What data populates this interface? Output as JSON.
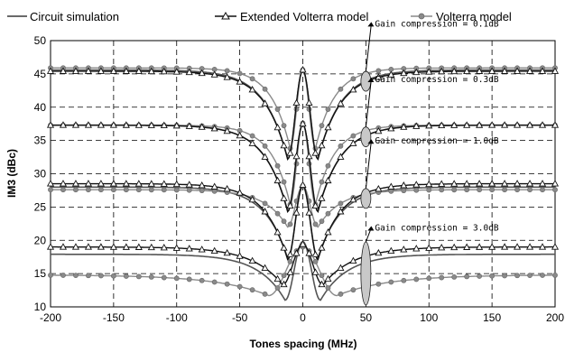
{
  "chart_data": {
    "type": "line",
    "xlabel": "Tones spacing (MHz)",
    "ylabel": "IM3 (dBc)",
    "xlim": [
      -200,
      200
    ],
    "ylim": [
      10,
      50
    ],
    "xticks": [
      -200,
      -150,
      -100,
      -50,
      0,
      50,
      100,
      150,
      200
    ],
    "yticks": [
      10,
      15,
      20,
      25,
      30,
      35,
      40,
      45,
      50
    ],
    "grid": "dashed, major ticks",
    "legend_position": "top",
    "series": [
      {
        "name": "Circuit simulation",
        "marker": "none",
        "color": "#555555"
      },
      {
        "name": "Extended Volterra model",
        "marker": "triangle",
        "color": "#111111"
      },
      {
        "name": "Volterra model",
        "marker": "circle",
        "color": "#8a8a8a"
      }
    ],
    "groups": [
      {
        "annotation": "Gain compression = 0.1dB",
        "circuit": {
          "far": 45.6,
          "dip": 32.2,
          "dip_at": 12,
          "peak": 45.5
        },
        "extended": {
          "far": 45.4,
          "dip": 32.2,
          "dip_at": 12,
          "peak": 45.6
        },
        "volterra": {
          "far": 45.9,
          "dip": 33.8,
          "dip_at": 10,
          "peak": 45.6
        }
      },
      {
        "annotation": "Gain compression = 0.3dB",
        "circuit": {
          "far": 37.3,
          "dip": 24.4,
          "dip_at": 12,
          "peak": 37.4
        },
        "extended": {
          "far": 37.3,
          "dip": 24.3,
          "dip_at": 12,
          "peak": 37.5
        },
        "volterra": {
          "far": 37.3,
          "dip": 25.4,
          "dip_at": 10,
          "peak": 37.6
        }
      },
      {
        "annotation": "Gain compression = 1.0dB",
        "circuit": {
          "far": 28.0,
          "dip": 17.3,
          "dip_at": 12,
          "peak": 28.1
        },
        "extended": {
          "far": 28.5,
          "dip": 17.1,
          "dip_at": 12,
          "peak": 28.3
        },
        "volterra": {
          "far": 27.6,
          "dip": 22.0,
          "dip_at": 12,
          "peak": 28.2
        }
      },
      {
        "annotation": "Gain compression = 3.0dB",
        "circuit": {
          "far": 17.9,
          "dip": 11.0,
          "dip_at": 14,
          "peak": 19.8
        },
        "extended": {
          "far": 19.0,
          "dip": 13.3,
          "dip_at": 16,
          "peak": 19.4
        },
        "volterra": {
          "far": 14.8,
          "dip": 11.7,
          "dip_at": 27,
          "peak": 19.0
        }
      }
    ]
  },
  "colors": {
    "circuit": "#555555",
    "extended": "#111111",
    "volterra": "#8a8a8a",
    "ellipse_fill": "#c8c8c8",
    "grid": "#000000"
  }
}
